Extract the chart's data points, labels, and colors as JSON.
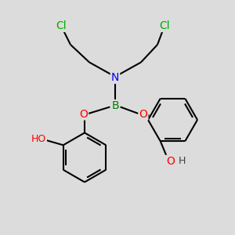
{
  "bg_color": "#dcdcdc",
  "atom_colors": {
    "C": "#000000",
    "N": "#0000ee",
    "B": "#008000",
    "O": "#ff0000",
    "Cl": "#00aa00",
    "H": "#404040"
  },
  "bond_color": "#000000",
  "bond_width": 1.5,
  "font_size": 10,
  "fig_w": 3.0,
  "fig_h": 3.0,
  "dpi": 100
}
